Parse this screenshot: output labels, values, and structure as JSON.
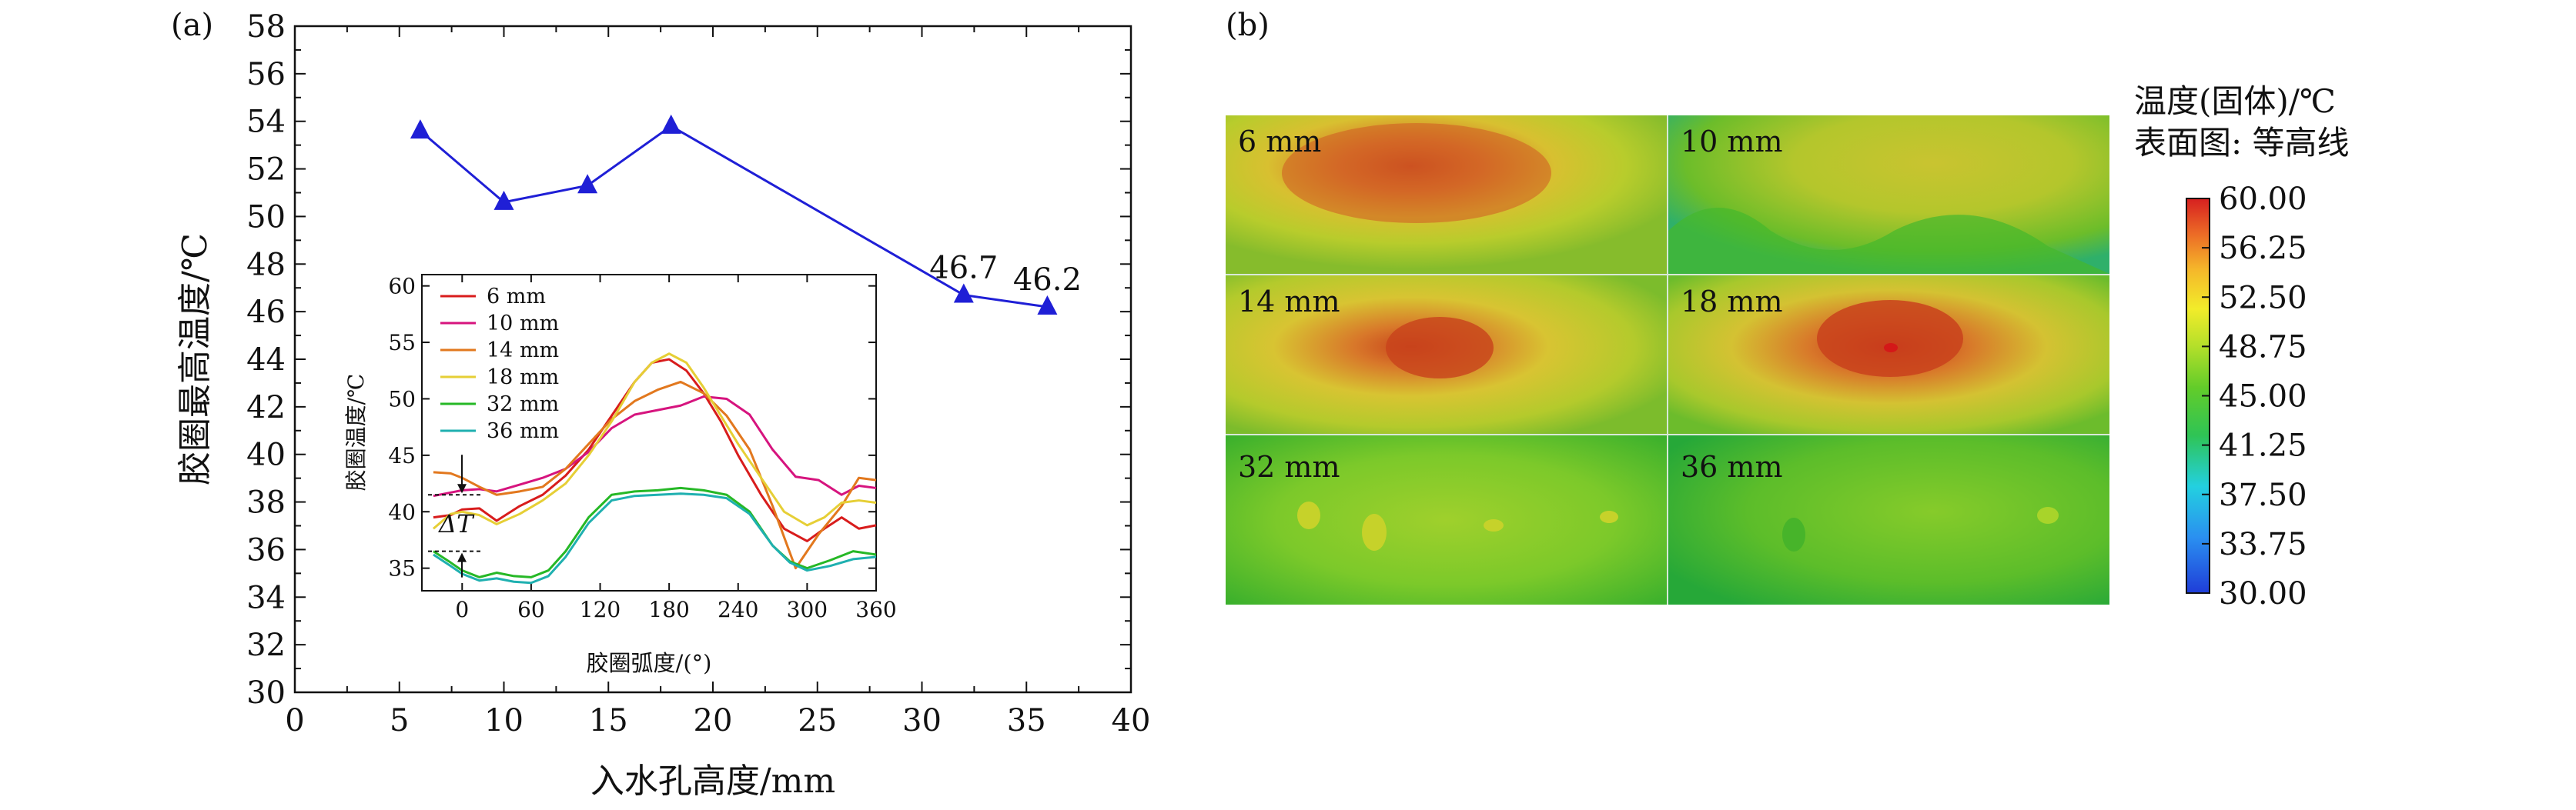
{
  "panel_a_label": "(a)",
  "panel_b_label": "(b)",
  "chart_data": [
    {
      "type": "line",
      "name": "main",
      "title": "",
      "xlabel": "入水孔高度/mm",
      "ylabel": "胶圈最高温度/℃",
      "xlim": [
        0,
        40
      ],
      "ylim": [
        30,
        58
      ],
      "xticks": [
        0,
        5,
        10,
        15,
        20,
        25,
        30,
        35,
        40
      ],
      "yticks": [
        30,
        32,
        34,
        36,
        38,
        40,
        42,
        44,
        46,
        48,
        50,
        52,
        54,
        56,
        58
      ],
      "color": "#1f1fd6",
      "x": [
        6,
        10,
        14,
        18,
        32,
        36
      ],
      "y": [
        53.6,
        50.6,
        51.3,
        53.8,
        46.7,
        46.2
      ],
      "data_labels": [
        {
          "x": 32,
          "y": 46.7,
          "text": "46.7"
        },
        {
          "x": 36,
          "y": 46.2,
          "text": "46.2"
        }
      ]
    },
    {
      "type": "line",
      "name": "inset",
      "xlabel": "胶圈弧度/(°)",
      "ylabel": "胶圈温度/℃",
      "xlim": [
        -35,
        360
      ],
      "ylim": [
        33,
        61
      ],
      "xticks": [
        0,
        60,
        120,
        180,
        240,
        300,
        360
      ],
      "yticks": [
        35,
        40,
        45,
        50,
        55,
        60
      ],
      "annotation": "ΔT",
      "delta_t_levels": [
        41.5,
        36.5
      ],
      "series": [
        {
          "name": "6 mm",
          "color": "#d81c1c",
          "x": [
            -25,
            -10,
            0,
            15,
            30,
            50,
            70,
            90,
            110,
            130,
            150,
            165,
            180,
            195,
            210,
            225,
            240,
            260,
            280,
            300,
            315,
            330,
            345,
            360
          ],
          "y": [
            39.5,
            39.7,
            40.2,
            40.3,
            39.2,
            40.5,
            41.5,
            43.2,
            45.5,
            48.5,
            51.5,
            53.2,
            53.5,
            52.5,
            50.5,
            48,
            45,
            41.5,
            38.5,
            37.4,
            38.5,
            39.5,
            38.5,
            38.8
          ]
        },
        {
          "name": "10 mm",
          "color": "#d6147e",
          "x": [
            -25,
            -10,
            0,
            15,
            30,
            50,
            70,
            90,
            110,
            130,
            150,
            170,
            190,
            210,
            230,
            250,
            270,
            290,
            310,
            330,
            345,
            360
          ],
          "y": [
            41.4,
            41.7,
            41.9,
            42,
            41.8,
            42.4,
            43,
            43.8,
            45.3,
            47.4,
            48.6,
            49,
            49.4,
            50.2,
            50,
            48.6,
            45.5,
            43.1,
            42.8,
            41.5,
            42.3,
            42.1
          ]
        },
        {
          "name": "14 mm",
          "color": "#e2781e",
          "x": [
            -25,
            -10,
            0,
            15,
            30,
            50,
            70,
            90,
            110,
            130,
            150,
            170,
            190,
            210,
            230,
            250,
            270,
            290,
            310,
            330,
            345,
            360
          ],
          "y": [
            43.5,
            43.4,
            43,
            42.2,
            41.5,
            41.8,
            42.2,
            43.8,
            46,
            48.2,
            49.8,
            50.8,
            51.5,
            50.5,
            48.5,
            45.5,
            40.5,
            35,
            38,
            40.5,
            43,
            42.8
          ]
        },
        {
          "name": "18 mm",
          "color": "#e6cf36",
          "x": [
            -25,
            -10,
            0,
            15,
            30,
            50,
            70,
            90,
            110,
            130,
            150,
            165,
            180,
            195,
            210,
            225,
            240,
            260,
            280,
            300,
            315,
            330,
            345,
            360
          ],
          "y": [
            38.5,
            39.8,
            40,
            39.7,
            38.9,
            39.8,
            41,
            42.5,
            45,
            48,
            51.5,
            53.2,
            54,
            53.2,
            51,
            48.5,
            46,
            43,
            40,
            38.8,
            39.5,
            40.8,
            41,
            40.8
          ]
        },
        {
          "name": "32 mm",
          "color": "#26b826",
          "x": [
            -25,
            -10,
            0,
            15,
            30,
            45,
            60,
            75,
            90,
            110,
            130,
            150,
            170,
            190,
            210,
            230,
            250,
            270,
            285,
            300,
            320,
            340,
            360
          ],
          "y": [
            36.5,
            35.5,
            34.8,
            34.2,
            34.6,
            34.3,
            34.2,
            34.8,
            36.5,
            39.5,
            41.5,
            41.8,
            41.9,
            42.1,
            41.9,
            41.5,
            40,
            37,
            35.6,
            35,
            35.7,
            36.5,
            36.2
          ]
        },
        {
          "name": "36 mm",
          "color": "#1fb0b0",
          "x": [
            -25,
            -10,
            0,
            15,
            30,
            45,
            60,
            75,
            90,
            110,
            130,
            150,
            170,
            190,
            210,
            230,
            250,
            270,
            285,
            300,
            320,
            340,
            360
          ],
          "y": [
            36.2,
            35.2,
            34.5,
            33.9,
            34.1,
            33.8,
            33.7,
            34.3,
            36,
            39,
            41,
            41.4,
            41.5,
            41.6,
            41.5,
            41.2,
            39.8,
            37,
            35.5,
            34.8,
            35.2,
            35.8,
            36
          ]
        }
      ]
    },
    {
      "type": "heatmap",
      "name": "contour_maps",
      "colorbar_title_line1": "温度(固体)/℃",
      "colorbar_title_line2": "表面图: 等高线",
      "colorbar_ticks": [
        "60.00",
        "56.25",
        "52.50",
        "48.75",
        "45.00",
        "41.25",
        "37.50",
        "33.75",
        "30.00"
      ],
      "colorbar_range": [
        30,
        60
      ],
      "panels": [
        {
          "label": "6 mm",
          "peak_c": 56
        },
        {
          "label": "10 mm",
          "peak_c": 51
        },
        {
          "label": "14 mm",
          "peak_c": 56
        },
        {
          "label": "18 mm",
          "peak_c": 58
        },
        {
          "label": "32 mm",
          "peak_c": 47
        },
        {
          "label": "36 mm",
          "peak_c": 46
        }
      ]
    }
  ]
}
